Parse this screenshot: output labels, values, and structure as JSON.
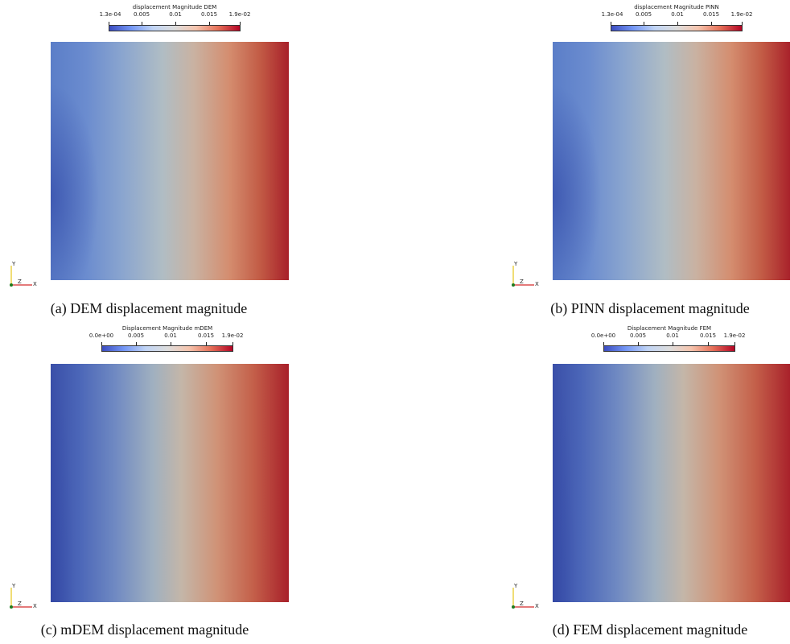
{
  "colors": {
    "cool": "#3b4cc0",
    "mid": "#dddddd",
    "warm": "#b40426"
  },
  "panels": [
    {
      "id": "a",
      "colorbar_title": "displacement Magnitude DEM",
      "colorbar_labels": [
        "1.3e-04",
        "0.005",
        "0.01",
        "0.015",
        "1.9e-02"
      ],
      "caption": "(a) DEM displacement magnitude",
      "axis_y": "Y",
      "axis_x": "X",
      "axis_z": "Z"
    },
    {
      "id": "b",
      "colorbar_title": "displacement Magnitude PINN",
      "colorbar_labels": [
        "1.3e-04",
        "0.005",
        "0.01",
        "0.015",
        "1.9e-02"
      ],
      "caption": "(b) PINN displacement magnitude",
      "axis_y": "Y",
      "axis_x": "X",
      "axis_z": "Z"
    },
    {
      "id": "c",
      "colorbar_title": "Displacement Magnitude mDEM",
      "colorbar_labels": [
        "0.0e+00",
        "0.005",
        "0.01",
        "0.015",
        "1.9e-02"
      ],
      "caption": "(c) mDEM displacement magnitude",
      "axis_y": "Y",
      "axis_x": "X",
      "axis_z": "Z"
    },
    {
      "id": "d",
      "colorbar_title": "Displacement Magnitude FEM",
      "colorbar_labels": [
        "0.0e+00",
        "0.005",
        "0.01",
        "0.015",
        "1.9e-02"
      ],
      "caption": "(d) FEM displacement magnitude",
      "axis_y": "Y",
      "axis_x": "X",
      "axis_z": "Z"
    }
  ]
}
